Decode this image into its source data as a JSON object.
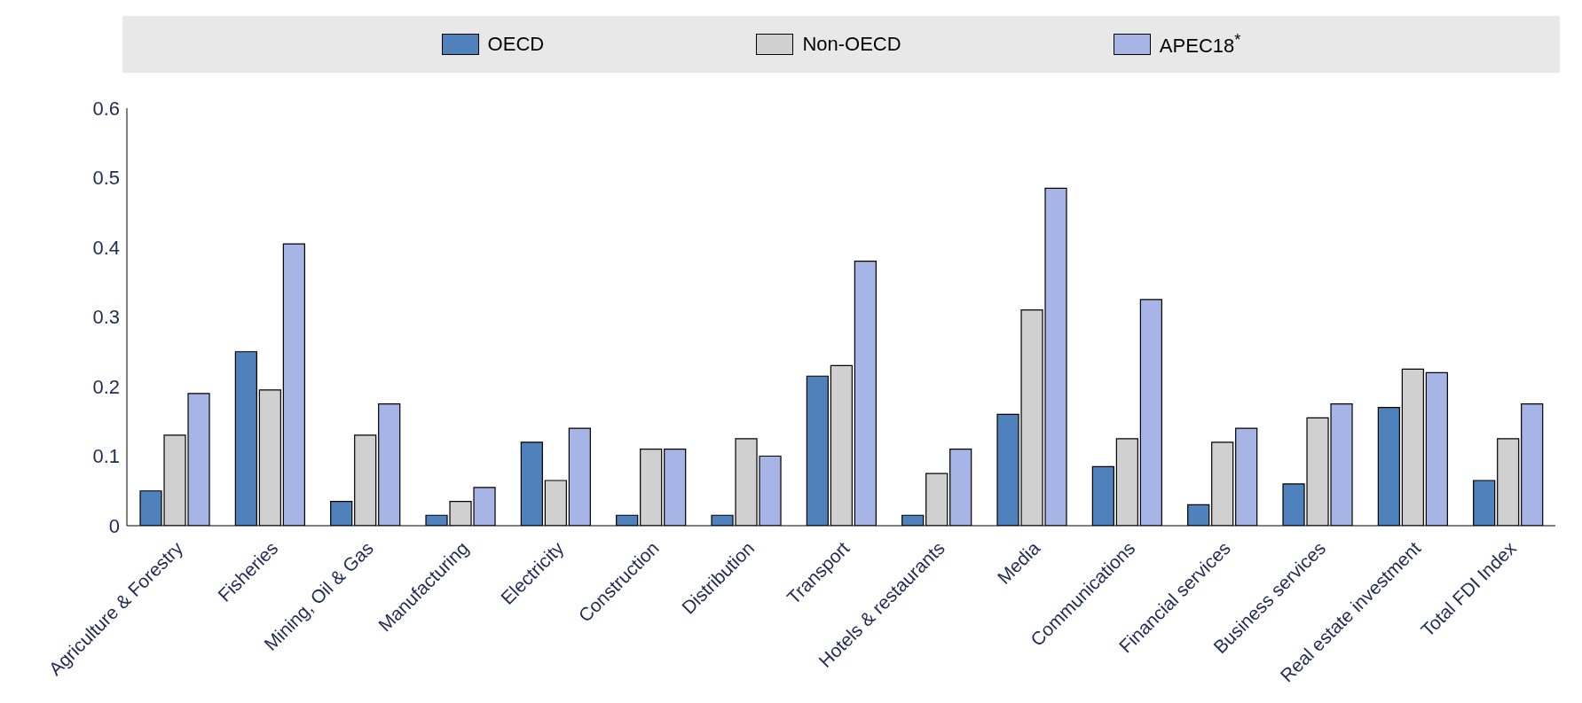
{
  "chart_data": {
    "type": "bar",
    "categories": [
      "Agriculture & Forestry",
      "Fisheries",
      "Mining, Oil & Gas",
      "Manufacturing",
      "Electricity",
      "Construction",
      "Distribution",
      "Transport",
      "Hotels & restaurants",
      "Media",
      "Communications",
      "Financial services",
      "Business services",
      "Real estate investment",
      "Total FDI Index"
    ],
    "series": [
      {
        "name": "OECD",
        "color": "#4f81bd",
        "values": [
          0.05,
          0.25,
          0.035,
          0.015,
          0.12,
          0.015,
          0.015,
          0.215,
          0.015,
          0.16,
          0.085,
          0.03,
          0.06,
          0.17,
          0.065
        ]
      },
      {
        "name": "Non-OECD",
        "color": "#d0d0d0",
        "values": [
          0.13,
          0.195,
          0.13,
          0.035,
          0.065,
          0.11,
          0.125,
          0.23,
          0.075,
          0.31,
          0.125,
          0.12,
          0.155,
          0.225,
          0.125
        ]
      },
      {
        "name": "APEC18$^{*}$",
        "color": "#a6b5e6",
        "values": [
          0.19,
          0.405,
          0.175,
          0.055,
          0.14,
          0.11,
          0.1,
          0.38,
          0.11,
          0.485,
          0.325,
          0.14,
          0.175,
          0.22,
          0.175
        ]
      }
    ],
    "ylim": [
      0,
      0.6
    ],
    "yticks": [
      0,
      0.1,
      0.2,
      0.3,
      0.4,
      0.5,
      0.6
    ],
    "grid": false,
    "legend": "top"
  }
}
